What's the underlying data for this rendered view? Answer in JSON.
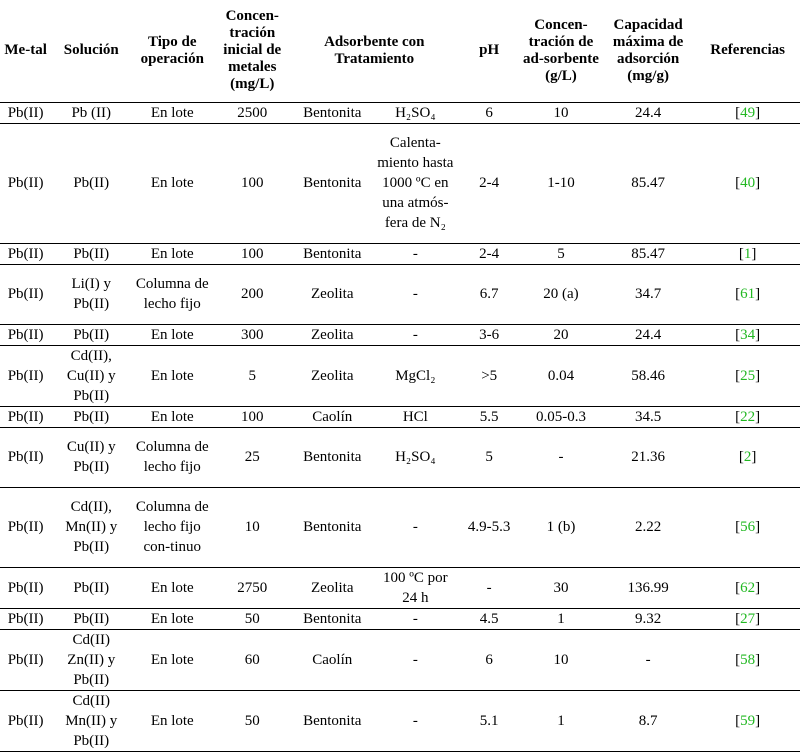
{
  "headers": {
    "metal": "Me-tal",
    "solucion": "Solución",
    "tipo": "Tipo de operación",
    "concentracion_inicial": "Concen-tración inicial de metales (mg/L)",
    "adsorbente": "Adsorbente con Tratamiento",
    "ph": "pH",
    "concentracion_adsorbente": "Concen-tración de ad-sorbente (g/L)",
    "capacidad": "Capacidad máxima de adsorción (mg/g)",
    "referencias": "Referencias"
  },
  "rows": [
    {
      "metal": "Pb(II)",
      "solucion": "Pb (II)",
      "tipo": "En lote",
      "conc": "2500",
      "adsorbente": "Bentonita",
      "tratamiento": "H₂SO₄",
      "ph": "6",
      "conc_ads": "10",
      "capacidad": "24.4",
      "ref": "49"
    },
    {
      "metal": "Pb(II)",
      "solucion": "Pb(II)",
      "tipo": "En lote",
      "conc": "100",
      "adsorbente": "Bentonita",
      "tratamiento": "Calenta-miento hasta 1000 ºC en una atmós-fera de N₂",
      "ph": "2-4",
      "conc_ads": "1-10",
      "capacidad": "85.47",
      "ref": "40"
    },
    {
      "metal": "Pb(II)",
      "solucion": "Pb(II)",
      "tipo": "En lote",
      "conc": "100",
      "adsorbente": "Bentonita",
      "tratamiento": "-",
      "ph": "2-4",
      "conc_ads": "5",
      "capacidad": "85.47",
      "ref": "1"
    },
    {
      "metal": "Pb(II)",
      "solucion": "Li(I) y Pb(II)",
      "tipo": "Columna de lecho fijo",
      "conc": "200",
      "adsorbente": "Zeolita",
      "tratamiento": "-",
      "ph": "6.7",
      "conc_ads": "20 (a)",
      "capacidad": "34.7",
      "ref": "61"
    },
    {
      "metal": "Pb(II)",
      "solucion": "Pb(II)",
      "tipo": "En lote",
      "conc": "300",
      "adsorbente": "Zeolita",
      "tratamiento": "-",
      "ph": "3-6",
      "conc_ads": "20",
      "capacidad": "24.4",
      "ref": "34"
    },
    {
      "metal": "Pb(II)",
      "solucion": "Cd(II), Cu(II) y Pb(II)",
      "tipo": "En lote",
      "conc": "5",
      "adsorbente": "Zeolita",
      "tratamiento": "MgCl₂",
      "ph": ">5",
      "conc_ads": "0.04",
      "capacidad": "58.46",
      "ref": "25"
    },
    {
      "metal": "Pb(II)",
      "solucion": "Pb(II)",
      "tipo": "En lote",
      "conc": "100",
      "adsorbente": "Caolín",
      "tratamiento": "HCl",
      "ph": "5.5",
      "conc_ads": "0.05-0.3",
      "capacidad": "34.5",
      "ref": "22"
    },
    {
      "metal": "Pb(II)",
      "solucion": "Cu(II) y Pb(II)",
      "tipo": "Columna de lecho fijo",
      "conc": "25",
      "adsorbente": "Bentonita",
      "tratamiento": "H₂SO₄",
      "ph": "5",
      "conc_ads": "-",
      "capacidad": "21.36",
      "ref": "2"
    },
    {
      "metal": "Pb(II)",
      "solucion": "Cd(II), Mn(II) y Pb(II)",
      "tipo": "Columna de lecho fijo con-tinuo",
      "conc": "10",
      "adsorbente": "Bentonita",
      "tratamiento": "-",
      "ph": "4.9-5.3",
      "conc_ads": "1 (b)",
      "capacidad": "2.22",
      "ref": "56"
    },
    {
      "metal": "Pb(II)",
      "solucion": "Pb(II)",
      "tipo": "En lote",
      "conc": "2750",
      "adsorbente": "Zeolita",
      "tratamiento": "100 ºC por 24 h",
      "ph": "-",
      "conc_ads": "30",
      "capacidad": "136.99",
      "ref": "62"
    },
    {
      "metal": "Pb(II)",
      "solucion": "Pb(II)",
      "tipo": "En lote",
      "conc": "50",
      "adsorbente": "Bentonita",
      "tratamiento": "-",
      "ph": "4.5",
      "conc_ads": "1",
      "capacidad": "9.32",
      "ref": "27"
    },
    {
      "metal": "Pb(II)",
      "solucion": "Cd(II) Zn(II) y Pb(II)",
      "tipo": "En lote",
      "conc": "60",
      "adsorbente": "Caolín",
      "tratamiento": "-",
      "ph": "6",
      "conc_ads": "10",
      "capacidad": "-",
      "ref": "58"
    },
    {
      "metal": "Pb(II)",
      "solucion": "Cd(II) Mn(II) y Pb(II)",
      "tipo": "En lote",
      "conc": "50",
      "adsorbente": "Bentonita",
      "tratamiento": "-",
      "ph": "5.1",
      "conc_ads": "1",
      "capacidad": "8.7",
      "ref": "59"
    }
  ],
  "colors": {
    "citation": "#22b822",
    "rule": "#000000"
  }
}
